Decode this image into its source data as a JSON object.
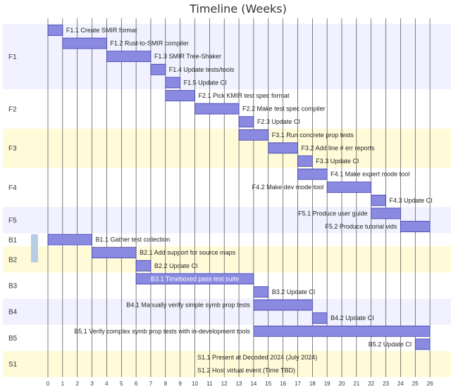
{
  "chart_data": {
    "type": "gantt",
    "title": "Timeline (Weeks)",
    "x_ticks": [
      0,
      1,
      2,
      3,
      4,
      5,
      6,
      7,
      8,
      9,
      10,
      11,
      12,
      13,
      14,
      15,
      16,
      17,
      18,
      19,
      20,
      21,
      22,
      23,
      24,
      25,
      26
    ],
    "xlim": [
      0,
      26
    ],
    "grid": true,
    "colors": {
      "bar_fill": "#8a8ae0",
      "bar_stroke": "#3b3bb0",
      "band_blue": "#f1f1ff",
      "band_yellow": "#fffbd9",
      "band_white": "#ffffff",
      "gridline": "#2b2b2b",
      "marker": "#b7cde6"
    },
    "sections": [
      {
        "name": "F1",
        "band": "band_blue",
        "tasks": [
          {
            "label": "F1.1 Create SMIR format",
            "start": 0,
            "end": 1
          },
          {
            "label": "F1.2 Rust-to-SMIR compiler",
            "start": 1,
            "end": 4
          },
          {
            "label": "F1.3 SMIR Tree-Shaker",
            "start": 4,
            "end": 7
          },
          {
            "label": "F1.4 Update tests/tools",
            "start": 7,
            "end": 8
          },
          {
            "label": "F1.5 Update CI",
            "start": 8,
            "end": 9
          }
        ]
      },
      {
        "name": "F2",
        "band": "band_white",
        "tasks": [
          {
            "label": "F2.1 Pick KMIR test spec format",
            "start": 8,
            "end": 10
          },
          {
            "label": "F2.2 Make test spec compiler",
            "start": 10,
            "end": 13
          },
          {
            "label": "F2.3 Update CI",
            "start": 13,
            "end": 14
          }
        ]
      },
      {
        "name": "F3",
        "band": "band_yellow",
        "tasks": [
          {
            "label": "F3.1 Run concrete prop tests",
            "start": 13,
            "end": 15
          },
          {
            "label": "F3.2 Add line # err reports",
            "start": 15,
            "end": 17
          },
          {
            "label": "F3.3 Update CI",
            "start": 17,
            "end": 18
          }
        ]
      },
      {
        "name": "F4",
        "band": "band_white",
        "tasks": [
          {
            "label": "F4.1 Make expert mode tool",
            "start": 17,
            "end": 19
          },
          {
            "label": "F4.2 Make dev mode tool",
            "start": 19,
            "end": 22
          },
          {
            "label": "F4.3 Update CI",
            "start": 22,
            "end": 23
          }
        ]
      },
      {
        "name": "F5",
        "band": "band_blue",
        "tasks": [
          {
            "label": "F5.1 Produce user guide",
            "start": 22,
            "end": 24
          },
          {
            "label": "F5.2 Produce tutorial vids",
            "start": 24,
            "end": 26
          }
        ]
      },
      {
        "name": "B1",
        "band": "band_white",
        "tasks": [
          {
            "label": "B1.1 Gather test collection",
            "start": 0,
            "end": 3
          }
        ]
      },
      {
        "name": "B2",
        "band": "band_yellow",
        "tasks": [
          {
            "label": "B2.1 Add support for source maps",
            "start": 3,
            "end": 6
          },
          {
            "label": "B2.2 Update CI",
            "start": 6,
            "end": 7
          }
        ]
      },
      {
        "name": "B3",
        "band": "band_white",
        "tasks": [
          {
            "label": "B3.1 Timeboxed pass test suite",
            "start": 6,
            "end": 14
          },
          {
            "label": "B3.2 Update CI",
            "start": 14,
            "end": 15
          }
        ]
      },
      {
        "name": "B4",
        "band": "band_blue",
        "tasks": [
          {
            "label": "B4.1 Manually verify simple symb prop tests",
            "start": 14,
            "end": 18
          },
          {
            "label": "B4.2 Update CI",
            "start": 18,
            "end": 19
          }
        ]
      },
      {
        "name": "B5",
        "band": "band_white",
        "tasks": [
          {
            "label": "B5.1 Verify complex symb prop tests with in-development tools",
            "start": 14,
            "end": 26
          },
          {
            "label": "B5.2 Update CI",
            "start": 25,
            "end": 26
          }
        ]
      },
      {
        "name": "S1",
        "band": "band_yellow",
        "tasks": [
          {
            "label": "S1.1 Present at Decoded 2024 (July 2024)",
            "milestone": true
          },
          {
            "label": "S1.2 Host virtual event (Time TBD)",
            "milestone": true
          }
        ]
      }
    ]
  }
}
